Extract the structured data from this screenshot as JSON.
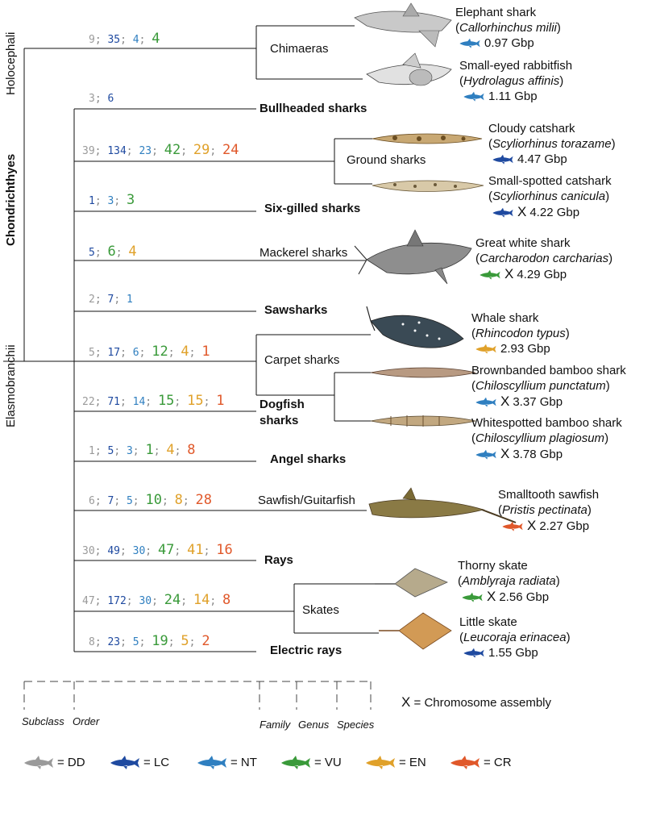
{
  "colors": {
    "DD": "#9a9a9a",
    "LC": "#1f4aa0",
    "NT": "#2f7fc0",
    "VU": "#3a9a3a",
    "EN": "#e0a12a",
    "CR": "#e0582a"
  },
  "subclasses": {
    "holocephali": "Holocephali",
    "chondrichthyes": "Chondrichthyes",
    "elasmobranchii": "Elasmobranchii"
  },
  "clades": [
    {
      "id": "chimaeras",
      "name": "Chimaeras",
      "bold": false,
      "counts": [
        "9",
        "35",
        "4",
        "4"
      ],
      "classes": [
        "DD",
        "LC",
        "NT",
        "VU"
      ]
    },
    {
      "id": "bullheaded",
      "name": "Bullheaded sharks",
      "bold": true,
      "counts": [
        "3",
        "6"
      ],
      "classes": [
        "DD",
        "LC"
      ]
    },
    {
      "id": "ground",
      "name": "Ground sharks",
      "bold": false,
      "counts": [
        "39",
        "134",
        "23",
        "42",
        "29",
        "24"
      ],
      "classes": [
        "DD",
        "LC",
        "NT",
        "VU",
        "EN",
        "CR"
      ]
    },
    {
      "id": "sixgill",
      "name": "Six-gilled sharks",
      "bold": true,
      "counts": [
        "1",
        "3",
        "3"
      ],
      "classes": [
        "LC",
        "NT",
        "VU"
      ]
    },
    {
      "id": "mackerel",
      "name": "Mackerel sharks",
      "bold": false,
      "counts": [
        "5",
        "6",
        "4"
      ],
      "classes": [
        "LC",
        "VU",
        "EN"
      ]
    },
    {
      "id": "saw",
      "name": "Sawsharks",
      "bold": true,
      "counts": [
        "2",
        "7",
        "1"
      ],
      "classes": [
        "DD",
        "LC",
        "NT"
      ]
    },
    {
      "id": "carpet",
      "name": "Carpet sharks",
      "bold": false,
      "counts": [
        "5",
        "17",
        "6",
        "12",
        "4",
        "1"
      ],
      "classes": [
        "DD",
        "LC",
        "NT",
        "VU",
        "EN",
        "CR"
      ]
    },
    {
      "id": "dogfish",
      "name": "Dogfish sharks",
      "name_line1": "Dogfish",
      "name_line2": "sharks",
      "bold": true,
      "counts": [
        "22",
        "71",
        "14",
        "15",
        "15",
        "1"
      ],
      "classes": [
        "DD",
        "LC",
        "NT",
        "VU",
        "EN",
        "CR"
      ]
    },
    {
      "id": "angel",
      "name": "Angel sharks",
      "bold": true,
      "counts": [
        "1",
        "5",
        "3",
        "1",
        "4",
        "8"
      ],
      "classes": [
        "DD",
        "LC",
        "NT",
        "VU",
        "EN",
        "CR"
      ]
    },
    {
      "id": "sawfish",
      "name": "Sawfish/Guitarfish",
      "bold": false,
      "counts": [
        "6",
        "7",
        "5",
        "10",
        "8",
        "28"
      ],
      "classes": [
        "DD",
        "LC",
        "NT",
        "VU",
        "EN",
        "CR"
      ]
    },
    {
      "id": "rays",
      "name": "Rays",
      "bold": true,
      "counts": [
        "30",
        "49",
        "30",
        "47",
        "41",
        "16"
      ],
      "classes": [
        "DD",
        "LC",
        "NT",
        "VU",
        "EN",
        "CR"
      ]
    },
    {
      "id": "skates",
      "name": "Skates",
      "bold": false,
      "counts": [
        "47",
        "172",
        "30",
        "24",
        "14",
        "8"
      ],
      "classes": [
        "DD",
        "LC",
        "NT",
        "VU",
        "EN",
        "CR"
      ]
    },
    {
      "id": "electric",
      "name": "Electric rays",
      "bold": true,
      "counts": [
        "8",
        "23",
        "5",
        "19",
        "5",
        "2"
      ],
      "classes": [
        "DD",
        "LC",
        "NT",
        "VU",
        "EN",
        "CR"
      ]
    }
  ],
  "species": [
    {
      "common": "Elephant shark",
      "latin": "Callorhinchus milii",
      "size": "0.97 Gbp",
      "status": "NT",
      "chromosome": false
    },
    {
      "common": "Small-eyed rabbitfish",
      "latin": "Hydrolagus affinis",
      "size": "1.11 Gbp",
      "status": "NT",
      "chromosome": false
    },
    {
      "common": "Cloudy catshark",
      "latin": "Scyliorhinus torazame",
      "size": "4.47 Gbp",
      "status": "LC",
      "chromosome": false
    },
    {
      "common": "Small-spotted catshark",
      "latin": "Scyliorhinus canicula",
      "size": "4.22 Gbp",
      "status": "LC",
      "chromosome": true
    },
    {
      "common": "Great white shark",
      "latin": "Carcharodon carcharias",
      "size": "4.29 Gbp",
      "status": "VU",
      "chromosome": true
    },
    {
      "common": "Whale shark",
      "latin": "Rhincodon typus",
      "size": "2.93 Gbp",
      "status": "EN",
      "chromosome": false
    },
    {
      "common": "Brownbanded bamboo shark",
      "latin": "Chiloscyllium punctatum",
      "size": "3.37 Gbp",
      "status": "NT",
      "chromosome": true
    },
    {
      "common": "Whitespotted bamboo shark",
      "latin": "Chiloscyllium plagiosum",
      "size": "3.78 Gbp",
      "status": "NT",
      "chromosome": true
    },
    {
      "common": "Smalltooth sawfish",
      "latin": "Pristis pectinata",
      "size": "2.27 Gbp",
      "status": "CR",
      "chromosome": true
    },
    {
      "common": "Thorny skate",
      "latin": "Amblyraja radiata",
      "size": "2.56 Gbp",
      "status": "VU",
      "chromosome": true
    },
    {
      "common": "Little skate",
      "latin": "Leucoraja erinacea",
      "size": "1.55 Gbp",
      "status": "LC",
      "chromosome": false
    }
  ],
  "ranks": {
    "subclass": "Subclass",
    "order": "Order",
    "family": "Family",
    "genus": "Genus",
    "species": "Species"
  },
  "chromosome_legend": {
    "symbol": "X",
    "text": "= Chromosome assembly"
  },
  "status_legend": [
    {
      "code": "DD",
      "label": "= DD"
    },
    {
      "code": "LC",
      "label": "= LC"
    },
    {
      "code": "NT",
      "label": "= NT"
    },
    {
      "code": "VU",
      "label": "= VU"
    },
    {
      "code": "EN",
      "label": "= EN"
    },
    {
      "code": "CR",
      "label": "= CR"
    }
  ],
  "icons": {
    "shark": "shark-silhouette-icon",
    "ray": "ray-silhouette-icon",
    "sawfish": "sawfish-silhouette-icon",
    "chromosome": "chromosome-icon"
  }
}
